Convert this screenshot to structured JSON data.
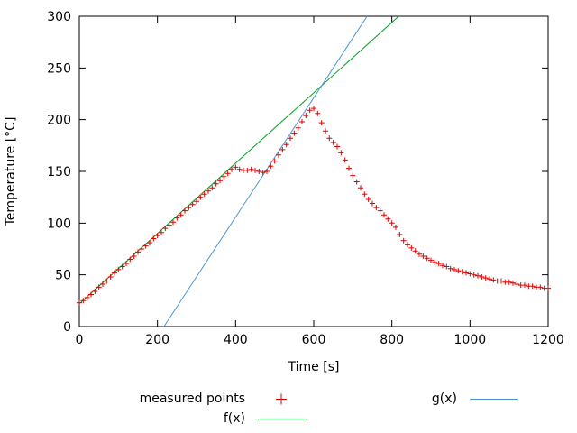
{
  "chart_data": {
    "type": "scatter",
    "title": "",
    "xlabel": "Time [s]",
    "ylabel": "Temperature [°C]",
    "xlim": [
      0,
      1200
    ],
    "ylim": [
      0,
      300
    ],
    "xticks": [
      0,
      200,
      400,
      600,
      800,
      1000,
      1200
    ],
    "yticks": [
      0,
      50,
      100,
      150,
      200,
      250,
      300
    ],
    "grid": false,
    "legend_position": "below-plot",
    "series": [
      {
        "name": "measured points",
        "type": "points",
        "marker": "plus",
        "color": "#dd0000",
        "x": [
          0,
          10,
          20,
          30,
          40,
          50,
          60,
          70,
          80,
          90,
          100,
          110,
          120,
          130,
          140,
          150,
          160,
          170,
          180,
          190,
          200,
          210,
          220,
          230,
          240,
          250,
          260,
          270,
          280,
          290,
          300,
          310,
          320,
          330,
          340,
          350,
          360,
          370,
          380,
          390,
          400,
          410,
          420,
          430,
          440,
          450,
          460,
          470,
          480,
          490,
          500,
          510,
          520,
          530,
          540,
          550,
          560,
          570,
          580,
          590,
          600,
          610,
          620,
          630,
          640,
          650,
          660,
          670,
          680,
          690,
          700,
          710,
          720,
          730,
          740,
          750,
          760,
          770,
          780,
          790,
          800,
          810,
          820,
          830,
          840,
          850,
          860,
          870,
          880,
          890,
          900,
          910,
          920,
          930,
          940,
          950,
          960,
          970,
          980,
          990,
          1000,
          1010,
          1020,
          1030,
          1040,
          1050,
          1060,
          1070,
          1080,
          1090,
          1100,
          1110,
          1120,
          1130,
          1140,
          1150,
          1160,
          1170,
          1180,
          1190,
          1200
        ],
        "y": [
          23,
          25,
          28,
          31,
          34,
          38,
          41,
          44,
          48,
          52,
          55,
          58,
          61,
          65,
          68,
          72,
          75,
          78,
          81,
          85,
          88,
          91,
          95,
          98,
          101,
          105,
          108,
          112,
          115,
          118,
          121,
          125,
          128,
          131,
          134,
          138,
          141,
          145,
          148,
          152,
          154,
          152,
          151,
          151,
          152,
          151,
          150,
          149,
          150,
          155,
          160,
          166,
          171,
          176,
          182,
          187,
          192,
          198,
          204,
          209,
          211,
          206,
          197,
          189,
          182,
          178,
          174,
          168,
          161,
          153,
          146,
          140,
          134,
          128,
          123,
          119,
          115,
          112,
          108,
          104,
          100,
          96,
          89,
          83,
          79,
          76,
          73,
          70,
          68,
          66,
          64,
          62,
          61,
          59,
          58,
          56,
          55,
          54,
          53,
          52,
          51,
          50,
          49,
          48,
          47,
          46,
          45,
          44,
          44,
          43,
          43,
          42,
          41,
          40,
          40,
          39,
          39,
          38,
          38,
          37,
          37
        ]
      },
      {
        "name": "f(x)",
        "type": "linear",
        "slope": 0.34,
        "intercept": 22,
        "color": "#00a020"
      },
      {
        "name": "g(x)",
        "type": "linear",
        "slope": 0.577,
        "intercept": -125,
        "color": "#4796d6"
      }
    ]
  },
  "colors": {
    "axis": "#000000",
    "background": "#ffffff",
    "measured": "#dd0000",
    "f_line": "#00a020",
    "g_line": "#4796d6"
  }
}
